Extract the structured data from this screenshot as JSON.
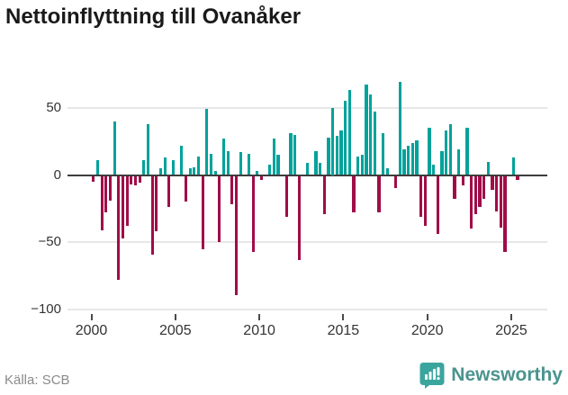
{
  "header": {
    "title": "Nettoinflyttning till Ovanåker"
  },
  "footer": {
    "source": "Källa: SCB",
    "brand": "Newsworthy"
  },
  "colors": {
    "positive_bar": "#00a29b",
    "negative_bar": "#a00c48",
    "zero_line": "#3d3d3d",
    "gridline": "#e7e7e7",
    "axis_text": "#333333",
    "source_text": "#8a8a8a",
    "brand_icon": "#3aa59d",
    "brand_text": "#4b948e",
    "title_text": "#1a1a1a"
  },
  "chart_data": {
    "type": "bar",
    "title": "Nettoinflyttning till Ovanåker",
    "xlabel": "",
    "ylabel": "",
    "grid": true,
    "legend": "none",
    "ylim": [
      -100,
      76
    ],
    "y_ticks": [
      50,
      0,
      -50,
      -100
    ],
    "y_tick_labels": [
      "50",
      "0",
      "−50",
      "−100"
    ],
    "x_tick_labels": [
      "2000",
      "2005",
      "2010",
      "2015",
      "2020",
      "2025"
    ],
    "x_tick_years": [
      2000,
      2005,
      2010,
      2015,
      2020,
      2025
    ],
    "frequency": "quarterly",
    "x": [
      "2000 Q1",
      "2000 Q2",
      "2000 Q3",
      "2000 Q4",
      "2001 Q1",
      "2001 Q2",
      "2001 Q3",
      "2001 Q4",
      "2002 Q1",
      "2002 Q2",
      "2002 Q3",
      "2002 Q4",
      "2003 Q1",
      "2003 Q2",
      "2003 Q3",
      "2003 Q4",
      "2004 Q1",
      "2004 Q2",
      "2004 Q3",
      "2004 Q4",
      "2005 Q1",
      "2005 Q2",
      "2005 Q3",
      "2005 Q4",
      "2006 Q1",
      "2006 Q2",
      "2006 Q3",
      "2006 Q4",
      "2007 Q1",
      "2007 Q2",
      "2007 Q3",
      "2007 Q4",
      "2008 Q1",
      "2008 Q2",
      "2008 Q3",
      "2008 Q4",
      "2009 Q1",
      "2009 Q2",
      "2009 Q3",
      "2009 Q4",
      "2010 Q1",
      "2010 Q2",
      "2010 Q3",
      "2010 Q4",
      "2011 Q1",
      "2011 Q2",
      "2011 Q3",
      "2011 Q4",
      "2012 Q1",
      "2012 Q2",
      "2012 Q3",
      "2012 Q4",
      "2013 Q1",
      "2013 Q2",
      "2013 Q3",
      "2013 Q4",
      "2014 Q1",
      "2014 Q2",
      "2014 Q3",
      "2014 Q4",
      "2015 Q1",
      "2015 Q2",
      "2015 Q3",
      "2015 Q4",
      "2016 Q1",
      "2016 Q2",
      "2016 Q3",
      "2016 Q4",
      "2017 Q1",
      "2017 Q2",
      "2017 Q3",
      "2017 Q4",
      "2018 Q1",
      "2018 Q2",
      "2018 Q3",
      "2018 Q4",
      "2019 Q1",
      "2019 Q2",
      "2019 Q3",
      "2019 Q4",
      "2020 Q1",
      "2020 Q2",
      "2020 Q3",
      "2020 Q4",
      "2021 Q1",
      "2021 Q2",
      "2021 Q3",
      "2021 Q4",
      "2022 Q1",
      "2022 Q2",
      "2022 Q3",
      "2022 Q4",
      "2023 Q1",
      "2023 Q2",
      "2023 Q3",
      "2023 Q4",
      "2024 Q1",
      "2024 Q2",
      "2024 Q3",
      "2024 Q4",
      "2025 Q1",
      "2025 Q2"
    ],
    "values": [
      -4,
      11,
      -40,
      -27,
      -18,
      40,
      -77,
      -46,
      -37,
      -6,
      -7,
      -5,
      11,
      38,
      -58,
      -41,
      5,
      13,
      -23,
      11,
      0,
      22,
      -19,
      5,
      6,
      14,
      -54,
      49,
      16,
      3,
      -49,
      27,
      18,
      -21,
      -88,
      17,
      0,
      16,
      -56,
      3,
      -3,
      0,
      8,
      27,
      15,
      0,
      -30,
      31,
      30,
      -62,
      0,
      9,
      0,
      18,
      9,
      -28,
      28,
      50,
      29,
      33,
      55,
      63,
      -27,
      14,
      15,
      67,
      60,
      47,
      -27,
      31,
      5,
      0,
      -9,
      69,
      19,
      22,
      24,
      26,
      -30,
      -37,
      35,
      8,
      -43,
      18,
      33,
      38,
      -17,
      19,
      -7,
      35,
      -39,
      -28,
      -23,
      -17,
      10,
      -10,
      -26,
      -38,
      -56,
      0,
      13,
      -3
    ]
  }
}
